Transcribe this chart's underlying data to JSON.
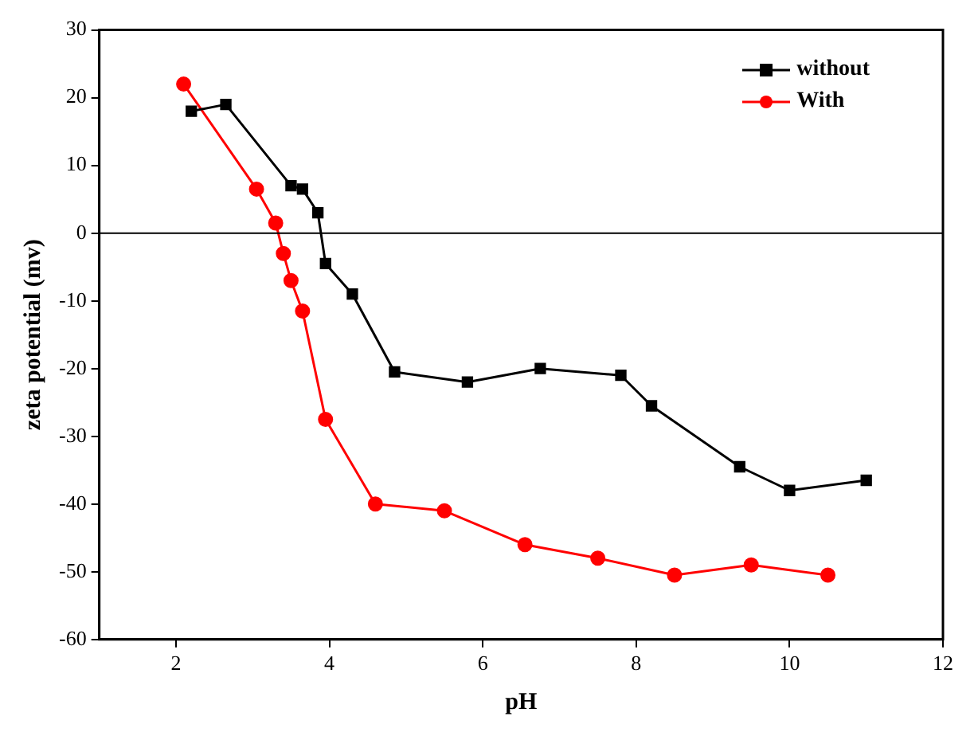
{
  "chart_data": {
    "type": "line",
    "xlabel": "pH",
    "ylabel": "zeta potential (mv)",
    "xlim": [
      1,
      12
    ],
    "xticks": [
      2,
      4,
      6,
      8,
      10,
      12
    ],
    "ylim": [
      -60,
      30
    ],
    "yticks": [
      -60,
      -50,
      -40,
      -30,
      -20,
      -10,
      0,
      10,
      20,
      30
    ],
    "grid": false,
    "legend": "top right",
    "line_style": "solid",
    "ref_lines": [
      {
        "axis": "y",
        "value": 0,
        "color": "#000000"
      }
    ],
    "series": [
      {
        "name": "without",
        "color": "#000000",
        "marker": "square",
        "x": [
          2.2,
          2.65,
          3.5,
          3.65,
          3.85,
          3.95,
          4.3,
          4.85,
          5.8,
          6.75,
          7.8,
          8.2,
          9.35,
          10,
          11
        ],
        "values": [
          18,
          19,
          7,
          6.5,
          3,
          -4.5,
          -9,
          -20.5,
          -22,
          -20,
          -21,
          -25.5,
          -34.5,
          -38,
          -36.5
        ]
      },
      {
        "name": "With",
        "color": "#ff0000",
        "marker": "circle",
        "x": [
          2.1,
          3.05,
          3.3,
          3.4,
          3.5,
          3.65,
          3.95,
          4.6,
          5.5,
          6.55,
          7.5,
          8.5,
          9.5,
          10.5
        ],
        "values": [
          22,
          6.5,
          1.5,
          -3,
          -7,
          -11.5,
          -27.5,
          -40,
          -41,
          -46,
          -48,
          -50.5,
          -49,
          -50.5
        ]
      }
    ]
  }
}
